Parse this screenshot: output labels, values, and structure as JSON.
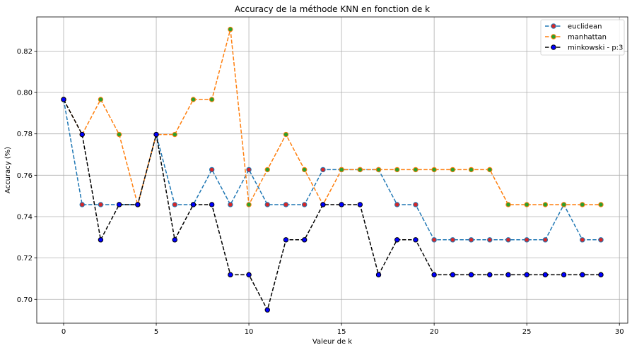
{
  "chart_data": {
    "type": "line",
    "title": "Accuracy de la méthode KNN en fonction de k",
    "xlabel": "Valeur de k",
    "ylabel": "Accuracy (%)",
    "xlim": [
      -1.45,
      30.45
    ],
    "ylim": [
      0.6885,
      0.8365
    ],
    "xticks": [
      0,
      5,
      10,
      15,
      20,
      25,
      30
    ],
    "yticks": [
      0.7,
      0.72,
      0.74,
      0.76,
      0.78,
      0.8,
      0.82
    ],
    "grid": true,
    "legend_position": "top-right",
    "x": [
      0,
      1,
      2,
      3,
      4,
      5,
      6,
      7,
      8,
      9,
      10,
      11,
      12,
      13,
      14,
      15,
      16,
      17,
      18,
      19,
      20,
      21,
      22,
      23,
      24,
      25,
      26,
      27,
      28,
      29
    ],
    "series": [
      {
        "name": "euclidean",
        "line_color": "#1f77b4",
        "marker_face": "#d62728",
        "marker_edge": "#1f77b4",
        "values": [
          0.7966,
          0.7458,
          0.7458,
          0.7458,
          0.7458,
          0.7797,
          0.7458,
          0.7458,
          0.7627,
          0.7458,
          0.7627,
          0.7458,
          0.7458,
          0.7458,
          0.7627,
          0.7627,
          0.7627,
          0.7627,
          0.7458,
          0.7458,
          0.7288,
          0.7288,
          0.7288,
          0.7288,
          0.7288,
          0.7288,
          0.7288,
          0.7458,
          0.7288,
          0.7288
        ]
      },
      {
        "name": "manhattan",
        "line_color": "#ff7f0e",
        "marker_face": "#2ca02c",
        "marker_edge": "#ff7f0e",
        "values": [
          0.7966,
          0.7797,
          0.7966,
          0.7797,
          0.7458,
          0.7797,
          0.7797,
          0.7966,
          0.7966,
          0.8305,
          0.7458,
          0.7627,
          0.7797,
          0.7627,
          0.7458,
          0.7627,
          0.7627,
          0.7627,
          0.7627,
          0.7627,
          0.7627,
          0.7627,
          0.7627,
          0.7627,
          0.7458,
          0.7458,
          0.7458,
          0.7458,
          0.7458,
          0.7458
        ]
      },
      {
        "name": "minkowski - p:3",
        "line_color": "#000000",
        "marker_face": "#0000ff",
        "marker_edge": "#000000",
        "values": [
          0.7966,
          0.7797,
          0.7288,
          0.7458,
          0.7458,
          0.7797,
          0.7288,
          0.7458,
          0.7458,
          0.7119,
          0.7119,
          0.6949,
          0.7288,
          0.7288,
          0.7458,
          0.7458,
          0.7458,
          0.7119,
          0.7288,
          0.7288,
          0.7119,
          0.7119,
          0.7119,
          0.7119,
          0.7119,
          0.7119,
          0.7119,
          0.7119,
          0.7119,
          0.7119
        ]
      }
    ]
  }
}
